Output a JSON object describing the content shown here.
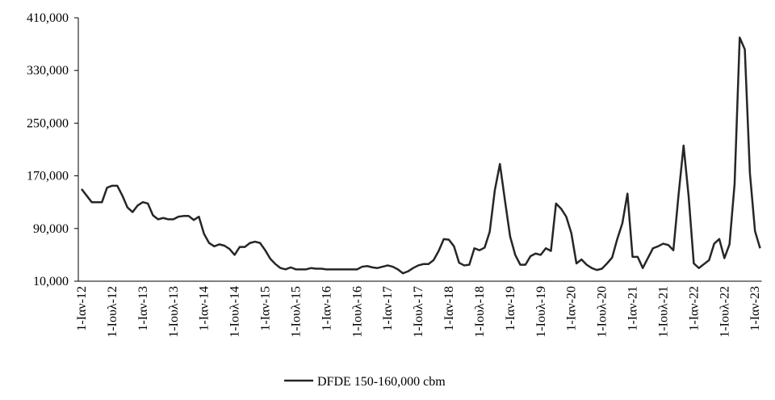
{
  "chart_data": {
    "type": "line",
    "categories": [
      "1-Ιαν-12",
      null,
      null,
      null,
      null,
      null,
      "1-Ιουλ-12",
      null,
      null,
      null,
      null,
      null,
      "1-Ιαν-13",
      null,
      null,
      null,
      null,
      null,
      "1-Ιουλ-13",
      null,
      null,
      null,
      null,
      null,
      "1-Ιαν-14",
      null,
      null,
      null,
      null,
      null,
      "1-Ιουλ-14",
      null,
      null,
      null,
      null,
      null,
      "1-Ιαν-15",
      null,
      null,
      null,
      null,
      null,
      "1-Ιουλ-15",
      null,
      null,
      null,
      null,
      null,
      "1-Ιαν-16",
      null,
      null,
      null,
      null,
      null,
      "1-Ιουλ-16",
      null,
      null,
      null,
      null,
      null,
      "1-Ιαν-17",
      null,
      null,
      null,
      null,
      null,
      "1-Ιουλ-17",
      null,
      null,
      null,
      null,
      null,
      "1-Ιαν-18",
      null,
      null,
      null,
      null,
      null,
      "1-Ιουλ-18",
      null,
      null,
      null,
      null,
      null,
      "1-Ιαν-19",
      null,
      null,
      null,
      null,
      null,
      "1-Ιουλ-19",
      null,
      null,
      null,
      null,
      null,
      "1-Ιαν-20",
      null,
      null,
      null,
      null,
      null,
      "1-Ιουλ-20",
      null,
      null,
      null,
      null,
      null,
      "1-Ιαν-21",
      null,
      null,
      null,
      null,
      null,
      "1-Ιουλ-21",
      null,
      null,
      null,
      null,
      null,
      "1-Ιαν-22",
      null,
      null,
      null,
      null,
      null,
      "1-Ιουλ-22",
      null,
      null,
      null,
      null,
      null,
      "1-Ιαν-23",
      null
    ],
    "series": [
      {
        "name": "DFDE 150-160,000 cbm",
        "color": "#262626",
        "values": [
          150000,
          140000,
          130000,
          130000,
          130000,
          152000,
          155000,
          155000,
          140000,
          122000,
          115000,
          125000,
          130000,
          128000,
          110000,
          104000,
          106000,
          104000,
          104000,
          108000,
          109000,
          109000,
          103000,
          108000,
          82000,
          68000,
          63000,
          66000,
          64000,
          59000,
          50000,
          62000,
          62000,
          68000,
          70000,
          68000,
          57000,
          44000,
          36000,
          30000,
          28000,
          31000,
          28000,
          28000,
          28000,
          30000,
          29000,
          29000,
          28000,
          28000,
          28000,
          28000,
          28000,
          28000,
          28000,
          32000,
          33000,
          31000,
          30000,
          32000,
          34000,
          32000,
          28000,
          22000,
          25000,
          30000,
          34000,
          36000,
          36000,
          42000,
          56000,
          74000,
          73000,
          63000,
          38000,
          34000,
          35000,
          60000,
          57000,
          61000,
          85000,
          148000,
          188000,
          132000,
          78000,
          50000,
          35000,
          35000,
          48000,
          52000,
          50000,
          60000,
          56000,
          128000,
          120000,
          108000,
          83000,
          37000,
          43000,
          35000,
          30000,
          27000,
          29000,
          37000,
          46000,
          74000,
          98000,
          143000,
          47000,
          47000,
          30000,
          45000,
          60000,
          63000,
          67000,
          65000,
          57000,
          140000,
          216000,
          138000,
          37000,
          30000,
          36000,
          42000,
          67000,
          74000,
          45000,
          66000,
          158000,
          380000,
          362000,
          174000,
          86000,
          60000
        ]
      }
    ],
    "ylim": [
      10000,
      410000
    ],
    "yticks": [
      {
        "value": 10000,
        "label": "10,000"
      },
      {
        "value": 90000,
        "label": "90,000"
      },
      {
        "value": 170000,
        "label": "170,000"
      },
      {
        "value": 250000,
        "label": "250,000"
      },
      {
        "value": 330000,
        "label": "330,000"
      },
      {
        "value": 410000,
        "label": "410,000"
      }
    ],
    "legend": "bottom",
    "grid": false
  }
}
